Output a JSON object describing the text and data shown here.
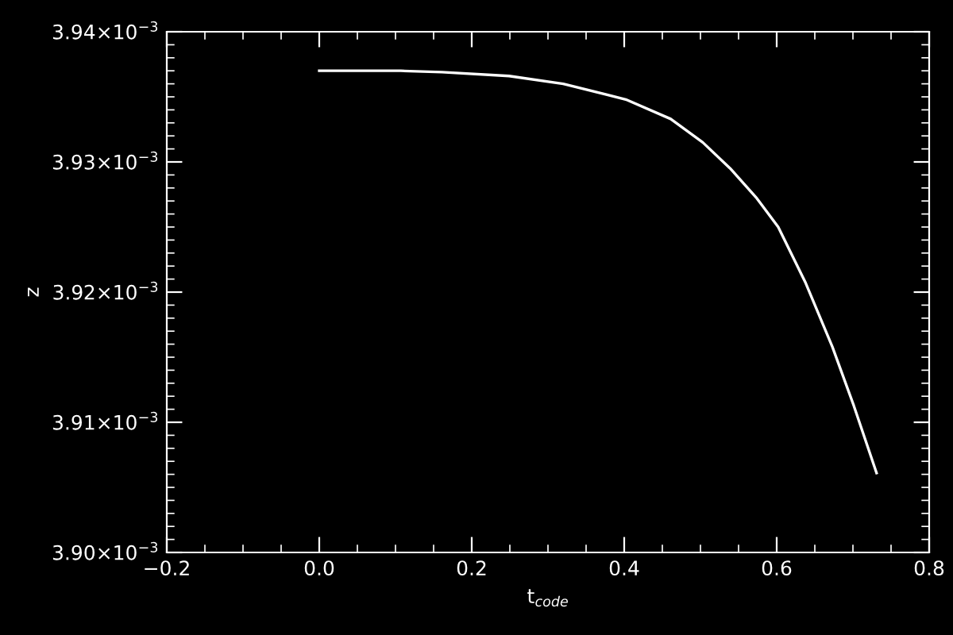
{
  "chart_data": {
    "type": "line",
    "xlabel": "t$_{code}$",
    "ylabel": "z",
    "x": [
      0.0,
      0.107,
      0.161,
      0.249,
      0.32,
      0.402,
      0.461,
      0.503,
      0.539,
      0.574,
      0.602,
      0.638,
      0.673,
      0.701,
      0.731
    ],
    "series": [
      {
        "color": "#ffffff",
        "values": [
          0.003937,
          0.003937,
          0.0039369,
          0.0039366,
          0.003936,
          0.0039348,
          0.0039333,
          0.0039315,
          0.0039295,
          0.0039272,
          0.003925,
          0.0039207,
          0.0039158,
          0.0039113,
          0.0039061
        ]
      }
    ],
    "xlim": [
      -0.2,
      0.8
    ],
    "xticks": [
      {
        "value": -0.2,
        "label": "−0.2"
      },
      {
        "value": 0.0,
        "label": "0.0"
      },
      {
        "value": 0.2,
        "label": "0.2"
      },
      {
        "value": 0.4,
        "label": "0.4"
      },
      {
        "value": 0.6,
        "label": "0.6"
      },
      {
        "value": 0.8,
        "label": "0.8"
      }
    ],
    "ylim": [
      0.0039,
      0.00394
    ],
    "yticks": [
      {
        "value": 0.0039,
        "label": "3.90×10$^{−3}$"
      },
      {
        "value": 0.00391,
        "label": "3.91×10$^{−3}$"
      },
      {
        "value": 0.00392,
        "label": "3.92×10$^{−3}$"
      },
      {
        "value": 0.00393,
        "label": "3.93×10$^{−3}$"
      },
      {
        "value": 0.00394,
        "label": "3.94×10$^{−3}$"
      }
    ],
    "grid": false,
    "legend": false,
    "marker": "none",
    "line_style": "solid"
  }
}
